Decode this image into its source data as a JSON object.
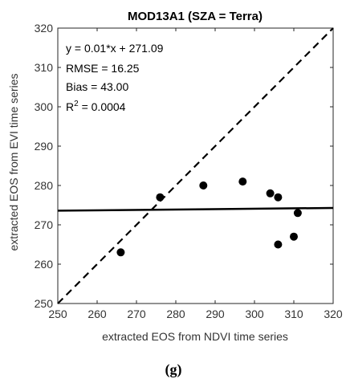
{
  "caption": "(g)",
  "chart_data": {
    "type": "scatter",
    "title": "MOD13A1 (SZA = Terra)",
    "xlabel": "extracted EOS from NDVI time series",
    "ylabel": "extracted EOS from EVI time series",
    "xlim": [
      250,
      320
    ],
    "ylim": [
      250,
      320
    ],
    "xticks": [
      250,
      260,
      270,
      280,
      290,
      300,
      310,
      320
    ],
    "yticks": [
      250,
      260,
      270,
      280,
      290,
      300,
      310,
      320
    ],
    "grid": false,
    "points": [
      {
        "x": 266,
        "y": 263
      },
      {
        "x": 276,
        "y": 277
      },
      {
        "x": 287,
        "y": 280
      },
      {
        "x": 297,
        "y": 281
      },
      {
        "x": 304,
        "y": 278
      },
      {
        "x": 306,
        "y": 277
      },
      {
        "x": 306,
        "y": 265
      },
      {
        "x": 310,
        "y": 267
      },
      {
        "x": 311,
        "y": 273
      }
    ],
    "fit_line": {
      "slope": 0.01,
      "intercept": 271.09
    },
    "one_to_one_line": true,
    "stats": {
      "equation": "y = 0.01*x + 271.09",
      "rmse": "RMSE = 16.25",
      "bias": "Bias = 43.00",
      "r2_prefix": "R",
      "r2_exp": "2",
      "r2_value": " = 0.0004"
    }
  }
}
